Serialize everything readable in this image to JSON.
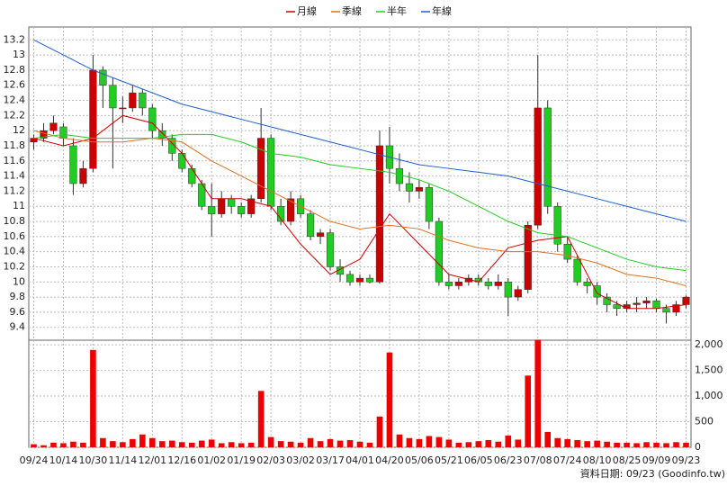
{
  "chart_data": {
    "type": "candlestick",
    "footer": "資料日期: 09/23  (Goodinfo.tw)",
    "legend": "top",
    "grid": true,
    "up_color": "#cc0000",
    "down_color": "#22cc22",
    "xlim": [
      -0.5,
      66.5
    ],
    "xticks": [
      {
        "value": 0,
        "label": "09/24"
      },
      {
        "value": 3,
        "label": "10/14"
      },
      {
        "value": 6,
        "label": "10/30"
      },
      {
        "value": 9,
        "label": "11/14"
      },
      {
        "value": 12,
        "label": "12/01"
      },
      {
        "value": 15,
        "label": "12/16"
      },
      {
        "value": 18,
        "label": "01/02"
      },
      {
        "value": 21,
        "label": "01/19"
      },
      {
        "value": 24,
        "label": "02/03"
      },
      {
        "value": 27,
        "label": "03/02"
      },
      {
        "value": 30,
        "label": "03/17"
      },
      {
        "value": 33,
        "label": "04/01"
      },
      {
        "value": 36,
        "label": "04/20"
      },
      {
        "value": 39,
        "label": "05/06"
      },
      {
        "value": 42,
        "label": "05/21"
      },
      {
        "value": 45,
        "label": "06/05"
      },
      {
        "value": 48,
        "label": "06/23"
      },
      {
        "value": 51,
        "label": "07/08"
      },
      {
        "value": 54,
        "label": "07/24"
      },
      {
        "value": 57,
        "label": "08/10"
      },
      {
        "value": 60,
        "label": "08/25"
      },
      {
        "value": 63,
        "label": "09/09"
      },
      {
        "value": 66,
        "label": "09/23"
      }
    ],
    "ylim": [
      9.23,
      13.37
    ],
    "yticks": [
      9.4,
      9.6,
      9.8,
      10,
      10.2,
      10.4,
      10.6,
      10.8,
      11,
      11.2,
      11.4,
      11.6,
      11.8,
      12,
      12.2,
      12.4,
      12.6,
      12.8,
      13,
      13.2
    ],
    "open": [
      11.85,
      11.9,
      12.0,
      12.05,
      11.8,
      11.3,
      11.5,
      12.8,
      12.6,
      12.3,
      12.3,
      12.5,
      12.3,
      12.0,
      11.9,
      11.7,
      11.5,
      11.3,
      11.0,
      10.9,
      11.1,
      11.0,
      10.9,
      11.1,
      11.9,
      11.0,
      10.8,
      11.1,
      10.9,
      10.6,
      10.65,
      10.2,
      10.1,
      10.0,
      10.05,
      10.0,
      11.8,
      11.5,
      11.3,
      11.2,
      11.25,
      10.8,
      10.0,
      9.95,
      10.0,
      10.05,
      10.0,
      9.95,
      10.0,
      9.8,
      9.9,
      10.75,
      12.3,
      11.0,
      10.5,
      10.3,
      10.0,
      9.95,
      9.8,
      9.7,
      9.65,
      9.7,
      9.72,
      9.75,
      9.65,
      9.6,
      9.7
    ],
    "high": [
      11.95,
      12.1,
      12.2,
      12.1,
      11.9,
      11.6,
      13.0,
      12.85,
      12.7,
      12.45,
      12.6,
      12.55,
      12.35,
      12.1,
      11.95,
      11.75,
      11.55,
      11.35,
      11.3,
      11.2,
      11.15,
      11.05,
      11.15,
      12.3,
      11.95,
      11.1,
      11.2,
      11.15,
      10.95,
      10.7,
      10.7,
      10.3,
      10.15,
      10.1,
      10.1,
      12.0,
      12.05,
      11.7,
      11.45,
      11.35,
      11.3,
      10.85,
      10.1,
      10.05,
      10.1,
      10.1,
      10.05,
      10.1,
      10.05,
      9.95,
      10.8,
      13.0,
      12.4,
      11.05,
      10.6,
      10.35,
      10.05,
      10.0,
      9.85,
      9.75,
      9.75,
      9.8,
      9.8,
      9.78,
      9.7,
      9.75,
      9.82
    ],
    "low": [
      11.75,
      11.85,
      11.95,
      11.8,
      11.15,
      11.25,
      11.45,
      12.3,
      11.5,
      12.1,
      12.25,
      12.2,
      11.9,
      11.8,
      11.6,
      11.45,
      11.25,
      10.95,
      10.6,
      10.85,
      10.9,
      10.85,
      10.85,
      11.05,
      10.95,
      10.75,
      10.75,
      10.85,
      10.55,
      10.5,
      10.15,
      10.0,
      9.95,
      9.95,
      9.98,
      9.98,
      11.3,
      11.2,
      11.05,
      11.1,
      10.7,
      9.95,
      9.9,
      9.9,
      9.95,
      9.95,
      9.9,
      9.9,
      9.55,
      9.75,
      9.85,
      10.7,
      10.9,
      10.4,
      10.25,
      9.95,
      9.85,
      9.7,
      9.6,
      9.55,
      9.6,
      9.6,
      9.65,
      9.6,
      9.45,
      9.55,
      9.65
    ],
    "close": [
      11.9,
      12.0,
      12.1,
      11.9,
      11.3,
      11.5,
      12.8,
      12.6,
      12.3,
      12.3,
      12.5,
      12.3,
      12.0,
      11.9,
      11.7,
      11.5,
      11.3,
      11.0,
      10.9,
      11.1,
      11.0,
      10.9,
      11.1,
      11.9,
      11.0,
      10.8,
      11.1,
      10.9,
      10.6,
      10.65,
      10.2,
      10.1,
      10.0,
      10.05,
      10.0,
      11.8,
      11.5,
      11.3,
      11.2,
      11.25,
      10.8,
      10.0,
      9.95,
      10.0,
      10.05,
      10.0,
      9.95,
      10.0,
      9.8,
      9.9,
      10.75,
      12.3,
      11.0,
      10.5,
      10.3,
      10.0,
      9.95,
      9.8,
      9.7,
      9.65,
      9.7,
      9.72,
      9.75,
      9.65,
      9.6,
      9.7,
      9.8
    ],
    "series": [
      {
        "name": "月線",
        "color": "#cc0000",
        "x": [
          0,
          3,
          6,
          9,
          12,
          15,
          18,
          21,
          24,
          27,
          30,
          33,
          36,
          39,
          42,
          45,
          48,
          51,
          54,
          57,
          60,
          63,
          66
        ],
        "values": [
          11.9,
          11.8,
          11.9,
          12.2,
          12.1,
          11.7,
          11.1,
          11.1,
          11.0,
          10.5,
          10.1,
          10.3,
          10.9,
          10.5,
          10.1,
          10.0,
          10.45,
          10.55,
          10.6,
          9.85,
          9.65,
          9.65,
          9.7
        ]
      },
      {
        "name": "季線",
        "color": "#e07020",
        "x": [
          0,
          3,
          6,
          9,
          12,
          15,
          18,
          21,
          24,
          27,
          30,
          33,
          36,
          39,
          42,
          45,
          48,
          51,
          54,
          57,
          60,
          63,
          66
        ],
        "values": [
          12.0,
          11.9,
          11.85,
          11.85,
          11.9,
          11.85,
          11.6,
          11.4,
          11.2,
          11.0,
          10.8,
          10.7,
          10.75,
          10.7,
          10.55,
          10.45,
          10.4,
          10.4,
          10.35,
          10.25,
          10.1,
          10.05,
          9.95
        ]
      },
      {
        "name": "半年",
        "color": "#22cc22",
        "x": [
          0,
          3,
          6,
          9,
          12,
          15,
          18,
          21,
          24,
          27,
          30,
          33,
          36,
          39,
          42,
          45,
          48,
          51,
          54,
          57,
          60,
          63,
          66
        ],
        "values": [
          11.9,
          11.95,
          11.9,
          11.9,
          11.9,
          11.95,
          11.95,
          11.85,
          11.7,
          11.65,
          11.55,
          11.5,
          11.45,
          11.35,
          11.2,
          11.0,
          10.8,
          10.65,
          10.6,
          10.45,
          10.3,
          10.2,
          10.15
        ]
      },
      {
        "name": "年線",
        "color": "#2060d0",
        "x": [
          0,
          3,
          6,
          9,
          12,
          15,
          18,
          21,
          24,
          27,
          30,
          33,
          36,
          39,
          42,
          45,
          48,
          51,
          54,
          57,
          60,
          63,
          66
        ],
        "values": [
          13.2,
          13.0,
          12.8,
          12.65,
          12.5,
          12.35,
          12.25,
          12.15,
          12.05,
          11.95,
          11.85,
          11.75,
          11.65,
          11.55,
          11.5,
          11.45,
          11.4,
          11.3,
          11.2,
          11.1,
          11.0,
          10.9,
          10.8
        ]
      }
    ],
    "volume": {
      "color": "#ee0000",
      "ylim": [
        0,
        2090
      ],
      "yticks": [
        0,
        500,
        {
          "value": 1000,
          "label": "1,000"
        },
        {
          "value": 1500,
          "label": "1,500"
        },
        {
          "value": 2000,
          "label": "2,000"
        }
      ],
      "values": [
        60,
        40,
        90,
        80,
        110,
        90,
        1900,
        180,
        120,
        100,
        160,
        250,
        180,
        120,
        130,
        100,
        90,
        130,
        150,
        80,
        100,
        80,
        90,
        1100,
        200,
        120,
        110,
        90,
        180,
        120,
        160,
        130,
        140,
        110,
        90,
        600,
        1850,
        250,
        180,
        160,
        220,
        200,
        150,
        90,
        100,
        120,
        140,
        110,
        230,
        150,
        1400,
        2100,
        300,
        180,
        160,
        140,
        120,
        130,
        110,
        90,
        90,
        80,
        100,
        90,
        80,
        100,
        90
      ]
    }
  }
}
